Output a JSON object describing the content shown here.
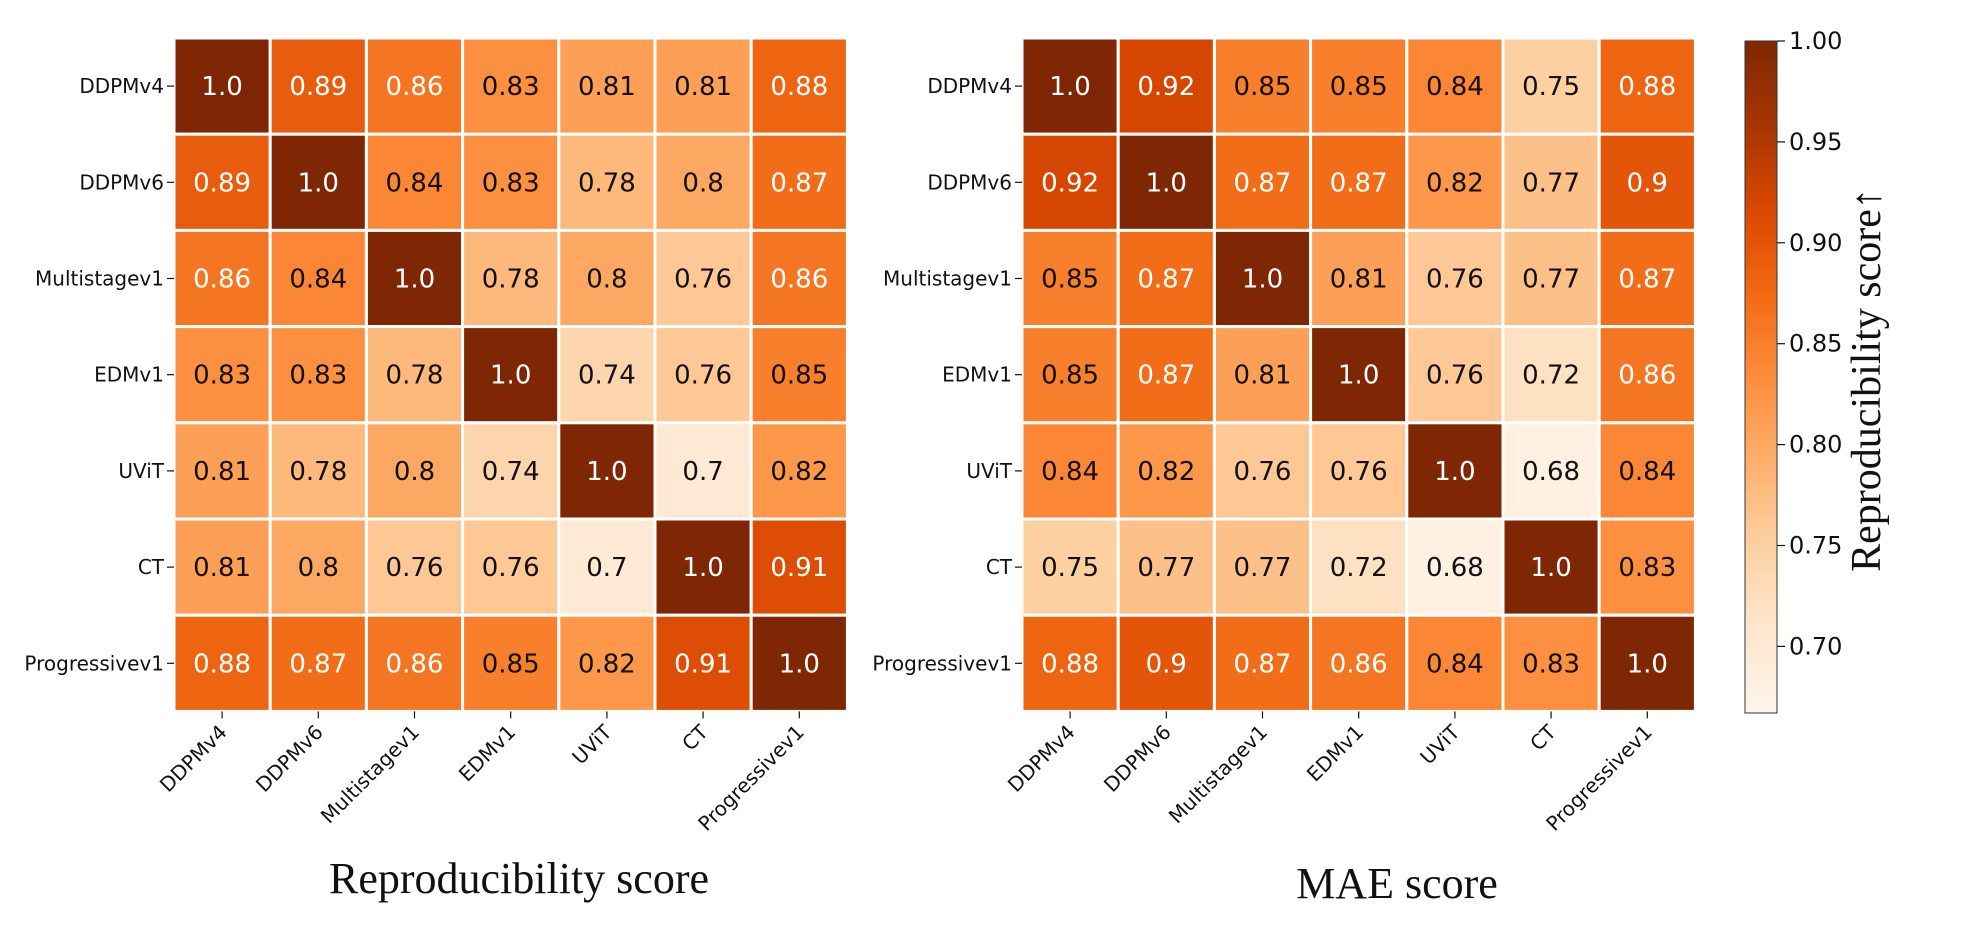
{
  "chart_data": [
    {
      "type": "heatmap",
      "title": "Reproducibility score",
      "xlabel": "",
      "ylabel": "",
      "categories": [
        "DDPMv4",
        "DDPMv6",
        "Multistagev1",
        "EDMv1",
        "UViT",
        "CT",
        "Progressivev1"
      ],
      "labels": [
        [
          "1.0",
          "0.89",
          "0.86",
          "0.83",
          "0.81",
          "0.81",
          "0.88"
        ],
        [
          "0.89",
          "1.0",
          "0.84",
          "0.83",
          "0.78",
          "0.8",
          "0.87"
        ],
        [
          "0.86",
          "0.84",
          "1.0",
          "0.78",
          "0.8",
          "0.76",
          "0.86"
        ],
        [
          "0.83",
          "0.83",
          "0.78",
          "1.0",
          "0.74",
          "0.76",
          "0.85"
        ],
        [
          "0.81",
          "0.78",
          "0.8",
          "0.74",
          "1.0",
          "0.7",
          "0.82"
        ],
        [
          "0.81",
          "0.8",
          "0.76",
          "0.76",
          "0.7",
          "1.0",
          "0.91"
        ],
        [
          "0.88",
          "0.87",
          "0.86",
          "0.85",
          "0.82",
          "0.91",
          "1.0"
        ]
      ]
    },
    {
      "type": "heatmap",
      "title": "MAE score",
      "xlabel": "",
      "ylabel": "",
      "categories": [
        "DDPMv4",
        "DDPMv6",
        "Multistagev1",
        "EDMv1",
        "UViT",
        "CT",
        "Progressivev1"
      ],
      "labels": [
        [
          "1.0",
          "0.92",
          "0.85",
          "0.85",
          "0.84",
          "0.75",
          "0.88"
        ],
        [
          "0.92",
          "1.0",
          "0.87",
          "0.87",
          "0.82",
          "0.77",
          "0.9"
        ],
        [
          "0.85",
          "0.87",
          "1.0",
          "0.81",
          "0.76",
          "0.77",
          "0.87"
        ],
        [
          "0.85",
          "0.87",
          "0.81",
          "1.0",
          "0.76",
          "0.72",
          "0.86"
        ],
        [
          "0.84",
          "0.82",
          "0.76",
          "0.76",
          "1.0",
          "0.68",
          "0.84"
        ],
        [
          "0.75",
          "0.77",
          "0.77",
          "0.72",
          "0.68",
          "1.0",
          "0.83"
        ],
        [
          "0.88",
          "0.9",
          "0.87",
          "0.86",
          "0.84",
          "0.83",
          "1.0"
        ]
      ]
    }
  ],
  "colorbar": {
    "label": "Reproducibility score",
    "label_arrow": "↑",
    "range": [
      0.667,
      1.0
    ],
    "ticks": [
      "1.00",
      "0.95",
      "0.90",
      "0.85",
      "0.80",
      "0.75",
      "0.70"
    ],
    "colormap": "Oranges",
    "colors": [
      "#fff5eb",
      "#fee6ce",
      "#fdd0a2",
      "#fdae6b",
      "#fd8d3c",
      "#f16913",
      "#d94801",
      "#a63603",
      "#7f2704"
    ]
  }
}
